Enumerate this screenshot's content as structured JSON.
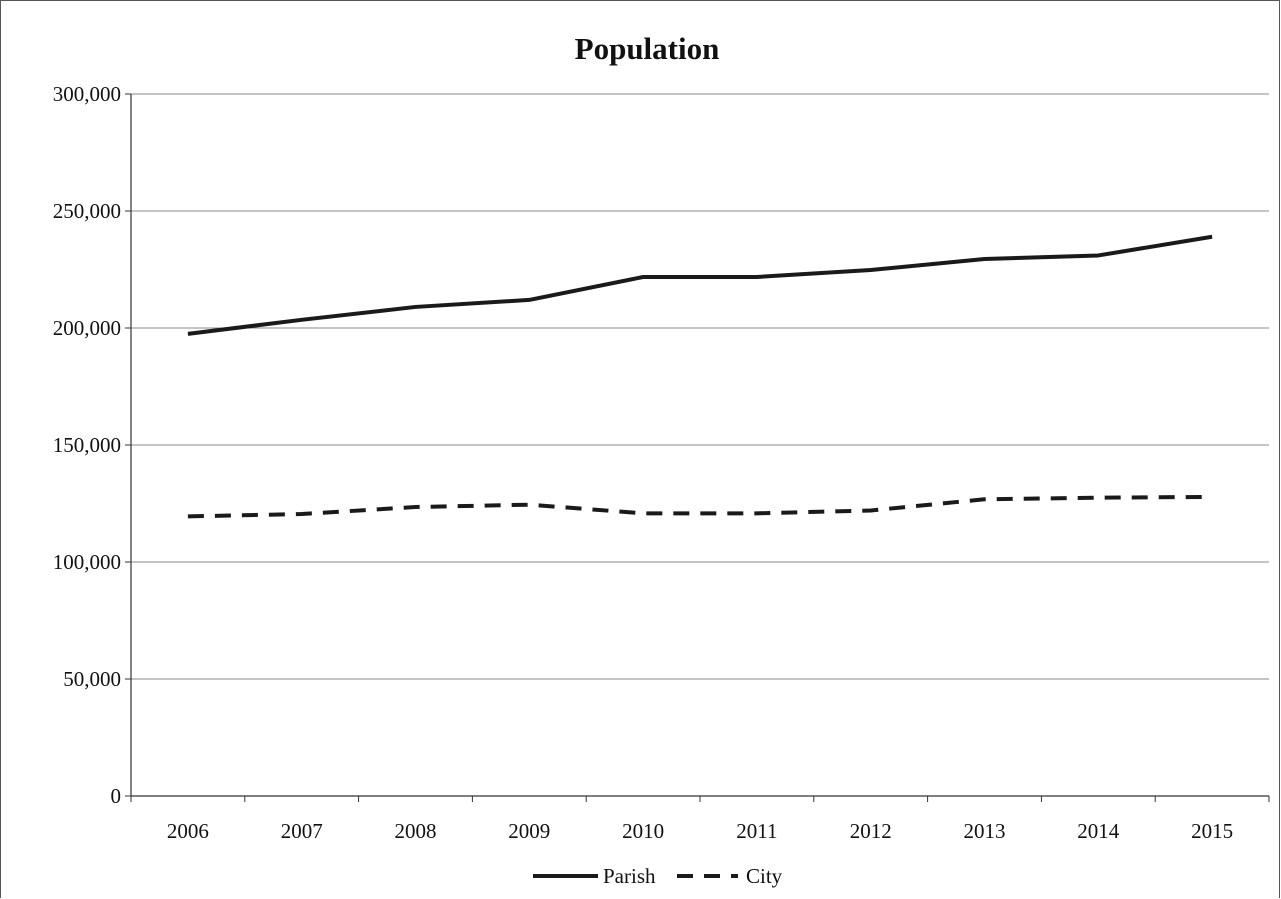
{
  "chart_data": {
    "type": "line",
    "title": "Population",
    "xlabel": "",
    "ylabel": "",
    "categories": [
      "2006",
      "2007",
      "2008",
      "2009",
      "2010",
      "2011",
      "2012",
      "2013",
      "2014",
      "2015"
    ],
    "ylim": [
      0,
      300000
    ],
    "yticks": [
      "0",
      "50,000",
      "100,000",
      "150,000",
      "200,000",
      "250,000",
      "300,000"
    ],
    "grid": true,
    "legend_position": "bottom",
    "series": [
      {
        "name": "Parish",
        "style": "solid",
        "color": "#1a1a1a",
        "values": [
          197500,
          203500,
          209000,
          212000,
          221800,
          221800,
          224800,
          229500,
          231000,
          239000
        ]
      },
      {
        "name": "City",
        "style": "dashed",
        "color": "#1a1a1a",
        "values": [
          119500,
          120500,
          123500,
          124500,
          120800,
          120800,
          122000,
          126800,
          127500,
          127800
        ]
      }
    ]
  }
}
